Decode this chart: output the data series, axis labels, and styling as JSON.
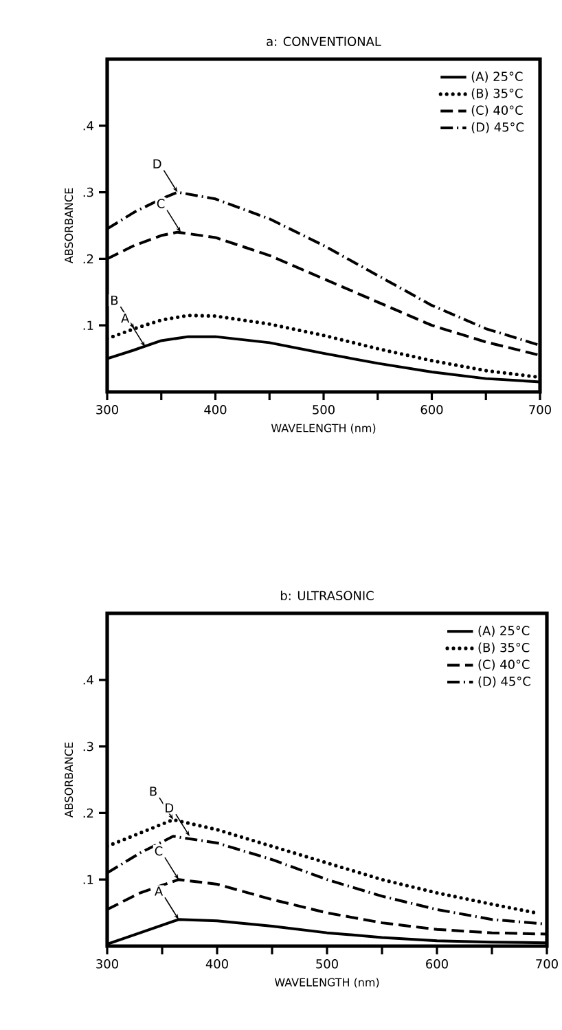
{
  "chart_data": [
    {
      "type": "line",
      "title": "a:  CONVENTIONAL",
      "xlabel": "WAVELENGTH (nm)",
      "ylabel": "ABSORBANCE",
      "xlim": [
        300,
        700
      ],
      "ylim": [
        0,
        0.5
      ],
      "xticks": [
        300,
        {
          "value": 350,
          "label": null
        },
        400,
        {
          "value": 450,
          "label": null
        },
        500,
        {
          "value": 550,
          "label": null
        },
        600,
        {
          "value": 650,
          "label": null
        },
        700
      ],
      "yticks": [
        {
          "value": 0.1,
          "label": ".1"
        },
        {
          "value": 0.2,
          "label": ".2"
        },
        {
          "value": 0.3,
          "label": ".3"
        },
        {
          "value": 0.4,
          "label": ".4"
        }
      ],
      "legend": "top right",
      "grid": false,
      "marker": "none",
      "series": [
        {
          "name": "(A) 25°C",
          "color": "#000000",
          "line_style": "solid",
          "x": [
            300,
            325,
            350,
            375,
            400,
            450,
            500,
            550,
            600,
            650,
            700
          ],
          "values": [
            0.05,
            0.063,
            0.077,
            0.083,
            0.083,
            0.074,
            0.058,
            0.043,
            0.03,
            0.02,
            0.015
          ]
        },
        {
          "name": "(B) 35°C",
          "color": "#000000",
          "line_style": "dotted",
          "x": [
            300,
            325,
            350,
            375,
            400,
            450,
            500,
            550,
            600,
            650,
            700
          ],
          "values": [
            0.08,
            0.095,
            0.108,
            0.115,
            0.114,
            0.102,
            0.085,
            0.065,
            0.047,
            0.032,
            0.022
          ]
        },
        {
          "name": "(C) 40°C",
          "color": "#000000",
          "line_style": "dashed",
          "x": [
            300,
            325,
            350,
            365,
            400,
            450,
            500,
            550,
            600,
            650,
            700
          ],
          "values": [
            0.2,
            0.22,
            0.235,
            0.24,
            0.232,
            0.205,
            0.17,
            0.135,
            0.1,
            0.075,
            0.055
          ]
        },
        {
          "name": "(D) 45°C",
          "color": "#000000",
          "line_style": "dashdot",
          "x": [
            300,
            325,
            350,
            365,
            400,
            450,
            500,
            550,
            600,
            650,
            700
          ],
          "values": [
            0.245,
            0.27,
            0.29,
            0.3,
            0.29,
            0.26,
            0.22,
            0.175,
            0.13,
            0.095,
            0.07
          ]
        }
      ],
      "annotations": [
        {
          "text": "D",
          "x": 365,
          "y": 0.3
        },
        {
          "text": "C",
          "x": 368,
          "y": 0.24
        },
        {
          "text": "B",
          "x": 325,
          "y": 0.095
        },
        {
          "text": "A",
          "x": 335,
          "y": 0.068
        }
      ]
    },
    {
      "type": "line",
      "title": "b:  ULTRASONIC",
      "xlabel": "WAVELENGTH (nm)",
      "ylabel": "ABSORBANCE",
      "xlim": [
        300,
        700
      ],
      "ylim": [
        0,
        0.5
      ],
      "xticks": [
        300,
        {
          "value": 350,
          "label": null
        },
        400,
        {
          "value": 450,
          "label": null
        },
        500,
        {
          "value": 550,
          "label": null
        },
        600,
        {
          "value": 650,
          "label": null
        },
        700
      ],
      "yticks": [
        {
          "value": 0.1,
          "label": ".1"
        },
        {
          "value": 0.2,
          "label": ".2"
        },
        {
          "value": 0.3,
          "label": ".3"
        },
        {
          "value": 0.4,
          "label": ".4"
        }
      ],
      "legend": "top right",
      "grid": false,
      "marker": "none",
      "series": [
        {
          "name": "(A) 25°C",
          "color": "#000000",
          "line_style": "solid",
          "x": [
            300,
            330,
            365,
            400,
            450,
            500,
            550,
            600,
            650,
            700
          ],
          "values": [
            0.003,
            0.02,
            0.04,
            0.038,
            0.03,
            0.02,
            0.013,
            0.008,
            0.006,
            0.005
          ]
        },
        {
          "name": "(B) 35°C",
          "color": "#000000",
          "line_style": "dotted",
          "x": [
            300,
            330,
            360,
            400,
            450,
            500,
            550,
            600,
            650,
            690
          ],
          "values": [
            0.15,
            0.17,
            0.19,
            0.175,
            0.15,
            0.125,
            0.1,
            0.08,
            0.063,
            0.05
          ]
        },
        {
          "name": "(C) 40°C",
          "color": "#000000",
          "line_style": "dashed",
          "x": [
            300,
            330,
            365,
            400,
            450,
            500,
            550,
            600,
            650,
            700
          ],
          "values": [
            0.055,
            0.08,
            0.1,
            0.093,
            0.07,
            0.05,
            0.035,
            0.025,
            0.02,
            0.018
          ]
        },
        {
          "name": "(D) 45°C",
          "color": "#000000",
          "line_style": "dashdot",
          "x": [
            300,
            330,
            360,
            400,
            450,
            500,
            550,
            600,
            650,
            700
          ],
          "values": [
            0.11,
            0.14,
            0.165,
            0.155,
            0.13,
            0.1,
            0.075,
            0.055,
            0.04,
            0.033
          ]
        }
      ],
      "annotations": [
        {
          "text": "B",
          "x": 360,
          "y": 0.19
        },
        {
          "text": "D",
          "x": 375,
          "y": 0.165
        },
        {
          "text": "C",
          "x": 365,
          "y": 0.1
        },
        {
          "text": "A",
          "x": 365,
          "y": 0.04
        }
      ]
    }
  ]
}
